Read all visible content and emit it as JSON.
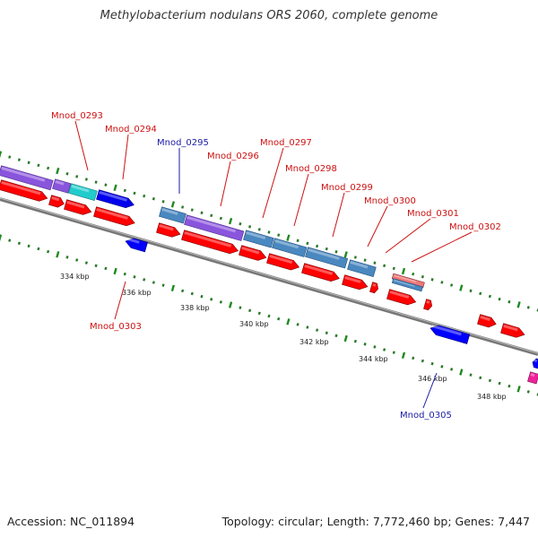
{
  "title": "Methylobacterium nodulans ORS 2060, complete genome",
  "footer": {
    "accession": "Accession: NC_011894",
    "summary": "Topology: circular; Length: 7,772,460 bp; Genes: 7,447"
  },
  "colors": {
    "forward": "#ff0000",
    "reverse": "#0000ff",
    "backbone": "#808080",
    "tick": "#008000",
    "label_red": "#cc1111",
    "label_blue": "#1a1aa8"
  },
  "scale_labels": [
    "334 kbp",
    "336 kbp",
    "338 kbp",
    "340 kbp",
    "342 kbp",
    "344 kbp",
    "346 kbp",
    "348 kbp"
  ],
  "gene_labels": [
    {
      "name": "Mnod_0293",
      "color": "red"
    },
    {
      "name": "Mnod_0294",
      "color": "red"
    },
    {
      "name": "Mnod_0295",
      "color": "blue"
    },
    {
      "name": "Mnod_0296",
      "color": "red"
    },
    {
      "name": "Mnod_0297",
      "color": "red"
    },
    {
      "name": "Mnod_0298",
      "color": "red"
    },
    {
      "name": "Mnod_0299",
      "color": "red"
    },
    {
      "name": "Mnod_0300",
      "color": "red"
    },
    {
      "name": "Mnod_0301",
      "color": "red"
    },
    {
      "name": "Mnod_0302",
      "color": "red"
    },
    {
      "name": "Mnod_0303",
      "color": "red"
    },
    {
      "name": "Mnod_0305",
      "color": "blue"
    }
  ]
}
